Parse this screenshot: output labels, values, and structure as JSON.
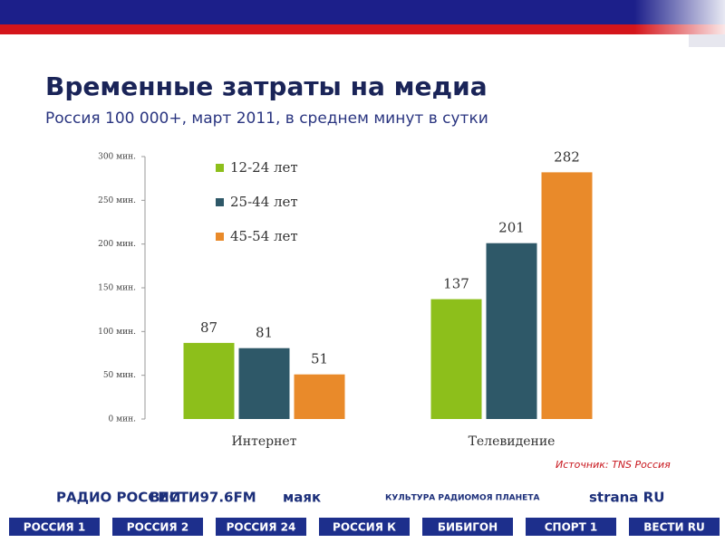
{
  "chart_data": {
    "type": "bar",
    "title": "Временные затраты на медиа",
    "subtitle": "Россия 100 000+, март 2011, в среднем минут в сутки",
    "categories": [
      "Интернет",
      "Телевидение"
    ],
    "series": [
      {
        "name": "12-24 лет",
        "color": "#8dbf1b",
        "values": [
          87,
          137
        ]
      },
      {
        "name": "25-44 лет",
        "color": "#2e5868",
        "values": [
          81,
          201
        ]
      },
      {
        "name": "45-54 лет",
        "color": "#e98a2a",
        "values": [
          51,
          282
        ]
      }
    ],
    "ylim": [
      0,
      300
    ],
    "yticks": [
      {
        "value": 0,
        "label": "0 мин."
      },
      {
        "value": 50,
        "label": "50 мин."
      },
      {
        "value": 100,
        "label": "100 мин."
      },
      {
        "value": 150,
        "label": "150 мин."
      },
      {
        "value": 200,
        "label": "200 мин."
      },
      {
        "value": 250,
        "label": "250 мин."
      },
      {
        "value": 300,
        "label": "300 мин."
      }
    ],
    "grid": false,
    "legend": "top-left",
    "source": "Источник: TNS Россия"
  },
  "logos": {
    "top": [
      "РАДИО РОССИИ",
      "ВЕСТИ97.6FM",
      "маяк",
      "КУЛЬТУРА РАДИО",
      "МОЯ ПЛАНЕТА",
      "strana RU"
    ],
    "bottom": [
      "РОССИЯ 1",
      "РОССИЯ 2",
      "РОССИЯ 24",
      "РОССИЯ К",
      "БИБИГОН",
      "СПОРТ 1",
      "ВЕСТИ RU"
    ]
  }
}
